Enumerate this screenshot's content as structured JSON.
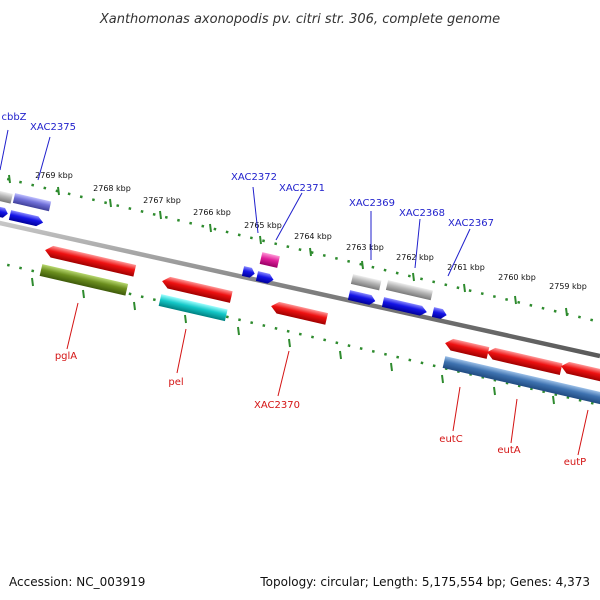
{
  "title": "Xanthomonas axonopodis pv. citri str. 306, complete genome",
  "accession": "Accession: NC_003919",
  "topology": "Topology: circular; Length: 5,175,554 bp; Genes: 4,373",
  "colors": {
    "backbone": "#808080",
    "ticks": "#2e8b2e",
    "label_plus": "#1f1fcc",
    "label_minus": "#d41414",
    "red": "#ee1111",
    "blue": "#1414e6",
    "grey": "#b4b4b4",
    "purple": "#7070d8",
    "magenta": "#e0209a",
    "olive": "#6b8e1e",
    "cyan": "#14c8c8",
    "steelblue": "#3e72b0"
  },
  "scale_labels": [
    "2769 kbp",
    "2768 kbp",
    "2767 kbp",
    "2766 kbp",
    "2765 kbp",
    "2764 kbp",
    "2763 kbp",
    "2762 kbp",
    "2761 kbp",
    "2760 kbp",
    "2759 kbp"
  ],
  "genes_plus": [
    "cbbZ",
    "XAC2375",
    "XAC2372",
    "XAC2371",
    "XAC2369",
    "XAC2368",
    "XAC2367"
  ],
  "genes_minus": [
    "pglA",
    "pel",
    "XAC2370",
    "eutC",
    "eutA",
    "eutP"
  ]
}
